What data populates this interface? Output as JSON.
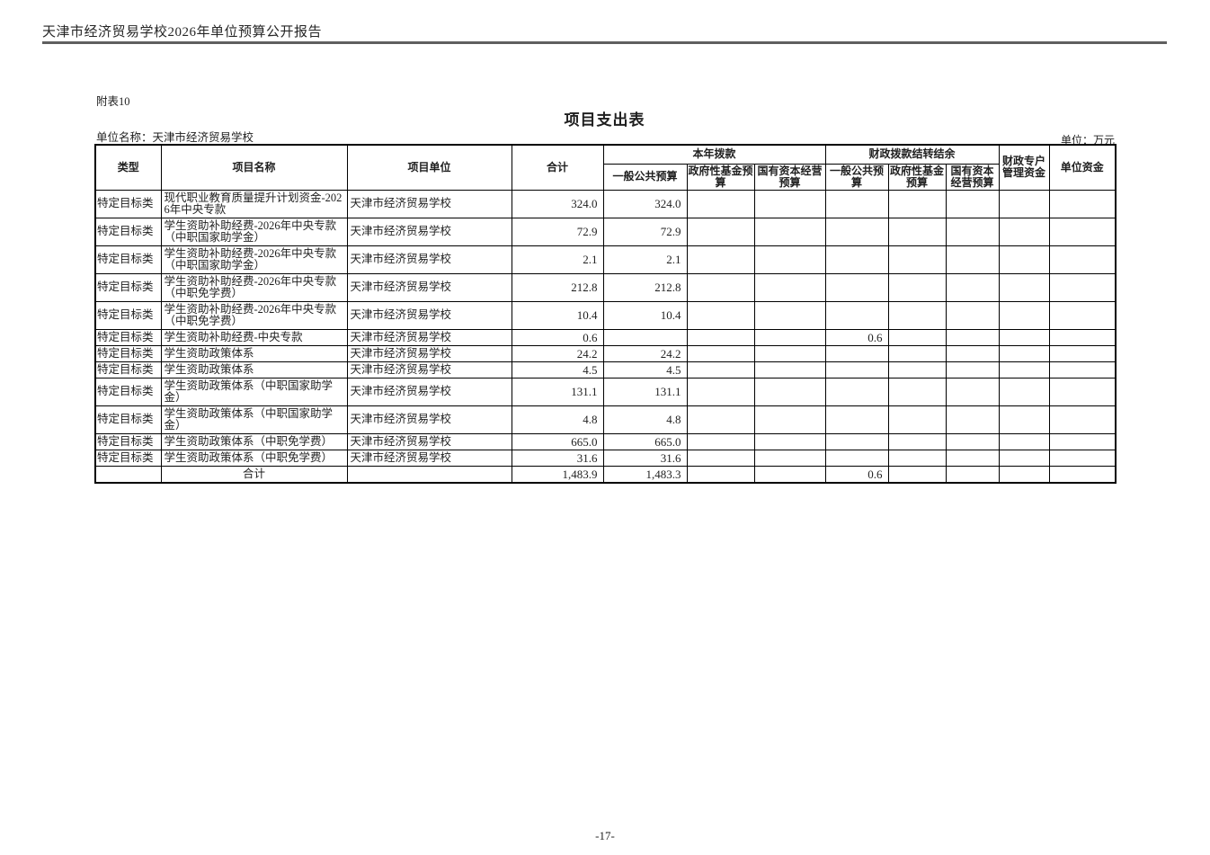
{
  "page": {
    "report_title": "天津市经济贸易学校2026年单位预算公开报告",
    "attachment_label": "附表10",
    "table_title": "项目支出表",
    "unit_name_label": "单位名称：天津市经济贸易学校",
    "unit_label": "单位：万元",
    "page_number": "-17-"
  },
  "table": {
    "headers": {
      "type": "类型",
      "project_name": "项目名称",
      "project_unit": "项目单位",
      "total": "合计",
      "current_year_group": "本年拨款",
      "carryover_group": "财政拨款结转结余",
      "cy_general": "一般公共预算",
      "cy_govfund": "政府性基金预算",
      "cy_statecap": "国有资本经营预算",
      "co_general": "一般公共预算",
      "co_govfund": "政府性基金预算",
      "co_statecap": "国有资本经营预算",
      "special_account": "财政专户管理资金",
      "unit_funds": "单位资金"
    },
    "rows": [
      {
        "type": "特定目标类",
        "name": "现代职业教育质量提升计划资金-2026年中央专款",
        "unit": "天津市经济贸易学校",
        "total": "324.0",
        "cy_general": "324.0",
        "cy_govfund": "",
        "cy_statecap": "",
        "co_general": "",
        "co_govfund": "",
        "co_statecap": "",
        "special_account": "",
        "unit_funds": ""
      },
      {
        "type": "特定目标类",
        "name": "学生资助补助经费-2026年中央专款（中职国家助学金）",
        "unit": "天津市经济贸易学校",
        "total": "72.9",
        "cy_general": "72.9",
        "cy_govfund": "",
        "cy_statecap": "",
        "co_general": "",
        "co_govfund": "",
        "co_statecap": "",
        "special_account": "",
        "unit_funds": ""
      },
      {
        "type": "特定目标类",
        "name": "学生资助补助经费-2026年中央专款（中职国家助学金）",
        "unit": "天津市经济贸易学校",
        "total": "2.1",
        "cy_general": "2.1",
        "cy_govfund": "",
        "cy_statecap": "",
        "co_general": "",
        "co_govfund": "",
        "co_statecap": "",
        "special_account": "",
        "unit_funds": ""
      },
      {
        "type": "特定目标类",
        "name": "学生资助补助经费-2026年中央专款（中职免学费）",
        "unit": "天津市经济贸易学校",
        "total": "212.8",
        "cy_general": "212.8",
        "cy_govfund": "",
        "cy_statecap": "",
        "co_general": "",
        "co_govfund": "",
        "co_statecap": "",
        "special_account": "",
        "unit_funds": ""
      },
      {
        "type": "特定目标类",
        "name": "学生资助补助经费-2026年中央专款（中职免学费）",
        "unit": "天津市经济贸易学校",
        "total": "10.4",
        "cy_general": "10.4",
        "cy_govfund": "",
        "cy_statecap": "",
        "co_general": "",
        "co_govfund": "",
        "co_statecap": "",
        "special_account": "",
        "unit_funds": ""
      },
      {
        "type": "特定目标类",
        "name": "学生资助补助经费-中央专款",
        "unit": "天津市经济贸易学校",
        "total": "0.6",
        "cy_general": "",
        "cy_govfund": "",
        "cy_statecap": "",
        "co_general": "0.6",
        "co_govfund": "",
        "co_statecap": "",
        "special_account": "",
        "unit_funds": ""
      },
      {
        "type": "特定目标类",
        "name": "学生资助政策体系",
        "unit": "天津市经济贸易学校",
        "total": "24.2",
        "cy_general": "24.2",
        "cy_govfund": "",
        "cy_statecap": "",
        "co_general": "",
        "co_govfund": "",
        "co_statecap": "",
        "special_account": "",
        "unit_funds": ""
      },
      {
        "type": "特定目标类",
        "name": "学生资助政策体系",
        "unit": "天津市经济贸易学校",
        "total": "4.5",
        "cy_general": "4.5",
        "cy_govfund": "",
        "cy_statecap": "",
        "co_general": "",
        "co_govfund": "",
        "co_statecap": "",
        "special_account": "",
        "unit_funds": ""
      },
      {
        "type": "特定目标类",
        "name": "学生资助政策体系（中职国家助学金）",
        "unit": "天津市经济贸易学校",
        "total": "131.1",
        "cy_general": "131.1",
        "cy_govfund": "",
        "cy_statecap": "",
        "co_general": "",
        "co_govfund": "",
        "co_statecap": "",
        "special_account": "",
        "unit_funds": ""
      },
      {
        "type": "特定目标类",
        "name": "学生资助政策体系（中职国家助学金）",
        "unit": "天津市经济贸易学校",
        "total": "4.8",
        "cy_general": "4.8",
        "cy_govfund": "",
        "cy_statecap": "",
        "co_general": "",
        "co_govfund": "",
        "co_statecap": "",
        "special_account": "",
        "unit_funds": ""
      },
      {
        "type": "特定目标类",
        "name": "学生资助政策体系（中职免学费）",
        "unit": "天津市经济贸易学校",
        "total": "665.0",
        "cy_general": "665.0",
        "cy_govfund": "",
        "cy_statecap": "",
        "co_general": "",
        "co_govfund": "",
        "co_statecap": "",
        "special_account": "",
        "unit_funds": ""
      },
      {
        "type": "特定目标类",
        "name": "学生资助政策体系（中职免学费）",
        "unit": "天津市经济贸易学校",
        "total": "31.6",
        "cy_general": "31.6",
        "cy_govfund": "",
        "cy_statecap": "",
        "co_general": "",
        "co_govfund": "",
        "co_statecap": "",
        "special_account": "",
        "unit_funds": ""
      },
      {
        "is_total": true,
        "type": "",
        "name": "合计",
        "unit": "",
        "total": "1,483.9",
        "cy_general": "1,483.3",
        "cy_govfund": "",
        "cy_statecap": "",
        "co_general": "0.6",
        "co_govfund": "",
        "co_statecap": "",
        "special_account": "",
        "unit_funds": ""
      }
    ]
  }
}
